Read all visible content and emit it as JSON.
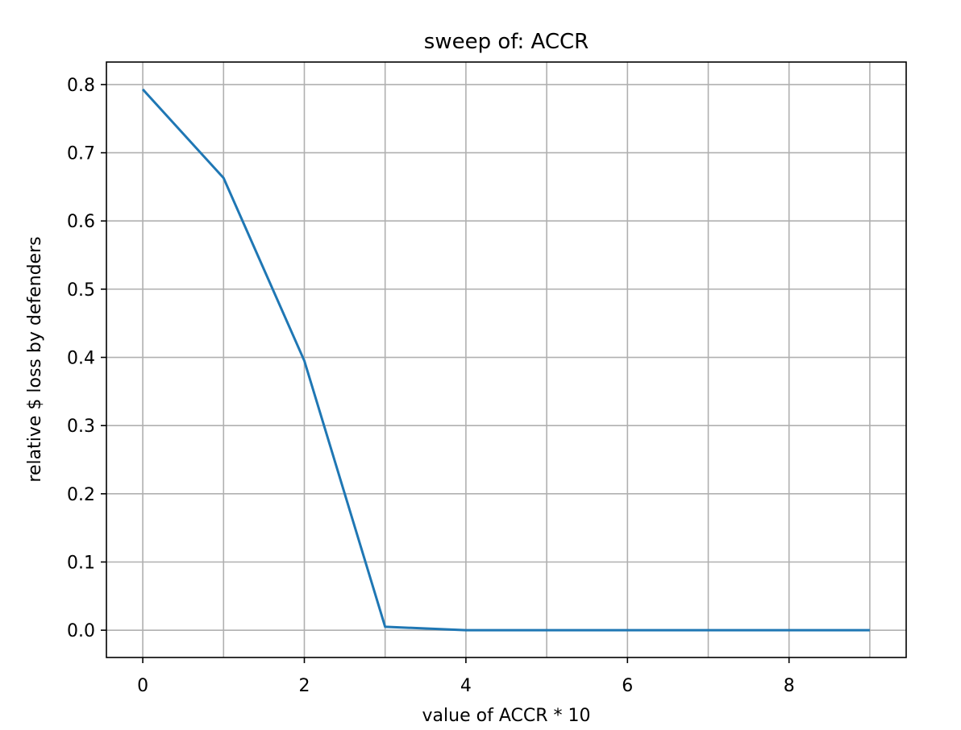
{
  "chart_data": {
    "type": "line",
    "title": "sweep of: ACCR",
    "xlabel": "value of ACCR * 10",
    "ylabel": "relative $ loss by defenders",
    "xlim": [
      -0.45,
      9.45
    ],
    "ylim": [
      -0.04,
      0.833
    ],
    "x_ticks": [
      0,
      2,
      4,
      6,
      8
    ],
    "x_tick_labels": [
      "0",
      "2",
      "4",
      "6",
      "8"
    ],
    "y_ticks": [
      0.0,
      0.1,
      0.2,
      0.3,
      0.4,
      0.5,
      0.6,
      0.7,
      0.8
    ],
    "y_tick_labels": [
      "0.0",
      "0.1",
      "0.2",
      "0.3",
      "0.4",
      "0.5",
      "0.6",
      "0.7",
      "0.8"
    ],
    "grid": true,
    "x_grid_values": [
      0,
      1,
      2,
      3,
      4,
      5,
      6,
      7,
      8,
      9
    ],
    "series": [
      {
        "color": "#1f77b4",
        "x": [
          0,
          1,
          2,
          3,
          4,
          5,
          6,
          7,
          8,
          9
        ],
        "values": [
          0.793,
          0.663,
          0.395,
          0.005,
          0.0,
          0.0,
          0.0,
          0.0,
          0.0,
          0.0
        ]
      }
    ]
  }
}
